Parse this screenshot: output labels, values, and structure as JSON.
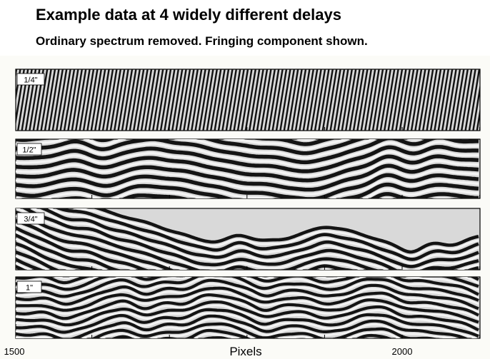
{
  "slide": {
    "title": "Example data at 4 widely different delays",
    "subtitle": "Ordinary spectrum removed.  Fringing component shown."
  },
  "figure": {
    "panels": [
      {
        "label": "1/4\""
      },
      {
        "label": "1/2\""
      },
      {
        "label": "3/4\""
      },
      {
        "label": "1\""
      }
    ],
    "x_axis": {
      "label": "Pixels",
      "tick_labels": [
        "1500",
        "2000"
      ]
    }
  }
}
